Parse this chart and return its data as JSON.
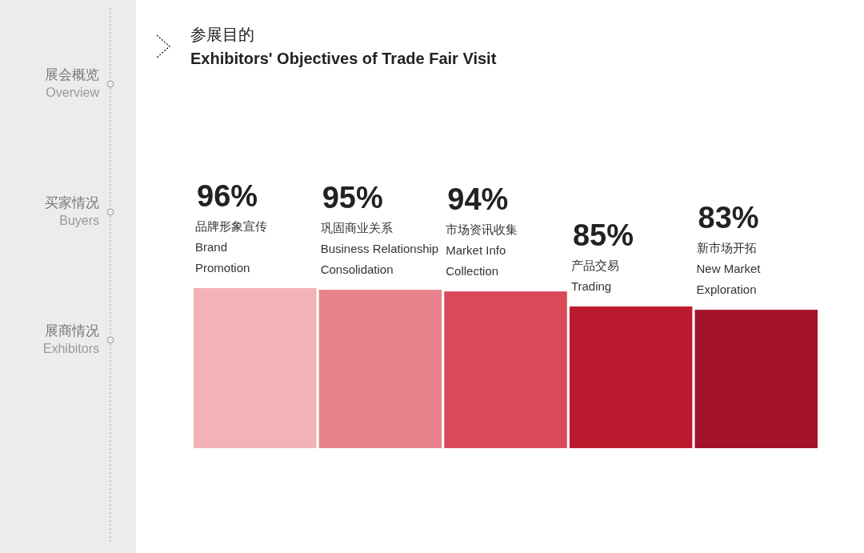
{
  "chart_data": {
    "type": "bar",
    "title": "参展目的",
    "subtitle": "Exhibitors' Objectives of Trade Fair Visit",
    "categories": [
      "品牌形象宣传\nBrand\nPromotion",
      "巩固商业关系\nBusiness Relationship\nConsolidation",
      "市场资讯收集\nMarket Info\nCollection",
      "产品交易\nTrading",
      "新市场开拓\nNew Market\nExploration"
    ],
    "values": [
      96,
      95,
      94,
      85,
      83
    ],
    "value_labels": [
      "96%",
      "95%",
      "94%",
      "85%",
      "83%"
    ],
    "colors": [
      "#f2b3b8",
      "#e7838d",
      "#d9495a",
      "#bb1a2e",
      "#a3132b"
    ],
    "annotations": [
      "展会概览\nOverview",
      "买家情况\nBuyers",
      "展商情况\nExhibitors"
    ]
  }
}
